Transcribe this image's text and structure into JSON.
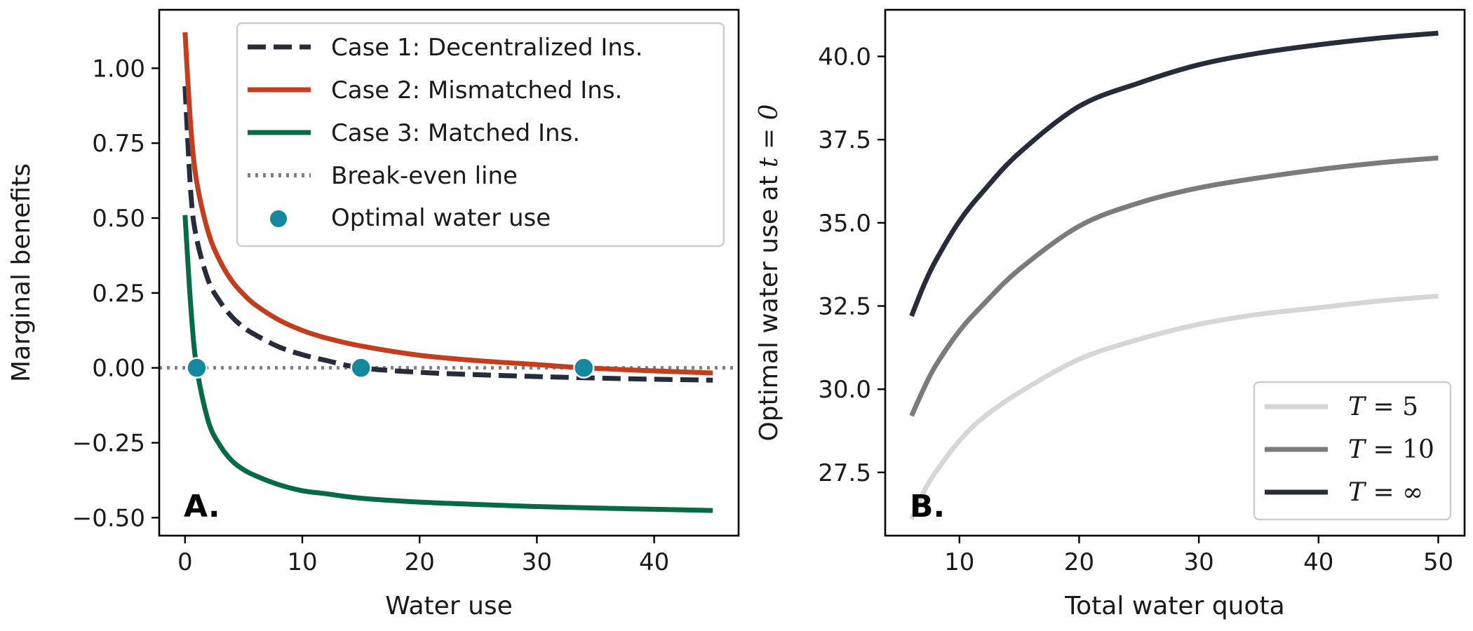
{
  "chart_data": [
    {
      "panel_label": "A.",
      "type": "line",
      "xlabel": "Water use",
      "ylabel": "Marginal benefits",
      "xlim": [
        -2.2,
        47.2
      ],
      "ylim": [
        -0.56,
        1.195
      ],
      "xticks": [
        0,
        10,
        20,
        30,
        40
      ],
      "xtick_labels": [
        "0",
        "10",
        "20",
        "30",
        "40"
      ],
      "yticks": [
        1.0,
        0.75,
        0.5,
        0.25,
        0.0,
        -0.25,
        -0.5
      ],
      "ytick_labels": [
        "1.00",
        "0.75",
        "0.50",
        "0.25",
        "0.00",
        "−0.25",
        "−0.50"
      ],
      "legend_position": "upper right",
      "series": [
        {
          "name": "Case 1: Decentralized Ins.",
          "style": "dashed",
          "color": "#272c3b",
          "x": [
            0,
            0.5,
            1,
            2,
            3,
            4,
            5,
            6,
            8,
            10,
            12,
            15,
            20,
            25,
            30,
            35,
            40,
            45
          ],
          "y": [
            0.94,
            0.58,
            0.43,
            0.29,
            0.22,
            0.17,
            0.135,
            0.11,
            0.07,
            0.044,
            0.025,
            0.0,
            -0.015,
            -0.023,
            -0.029,
            -0.034,
            -0.038,
            -0.041
          ]
        },
        {
          "name": "Case 2: Mismatched Ins.",
          "style": "solid",
          "color": "#c23e1f",
          "x": [
            0,
            0.5,
            1,
            2,
            3,
            4,
            5,
            6,
            8,
            10,
            12,
            15,
            20,
            25,
            30,
            34,
            40,
            45
          ],
          "y": [
            1.12,
            0.8,
            0.62,
            0.45,
            0.355,
            0.29,
            0.245,
            0.21,
            0.16,
            0.125,
            0.1,
            0.073,
            0.042,
            0.024,
            0.011,
            0.0,
            -0.01,
            -0.017
          ]
        },
        {
          "name": "Case 3: Matched Ins.",
          "style": "solid",
          "color": "#066b44",
          "x": [
            0,
            0.5,
            1,
            2,
            3,
            4,
            5,
            6,
            8,
            10,
            12,
            15,
            20,
            25,
            30,
            35,
            40,
            45
          ],
          "y": [
            0.51,
            0.2,
            0.0,
            -0.18,
            -0.26,
            -0.31,
            -0.34,
            -0.36,
            -0.39,
            -0.41,
            -0.42,
            -0.435,
            -0.448,
            -0.456,
            -0.463,
            -0.468,
            -0.472,
            -0.476
          ]
        },
        {
          "name": "Break-even line",
          "style": "dotted",
          "color": "#808080",
          "x": [
            -2.2,
            47.2
          ],
          "y": [
            0,
            0
          ]
        }
      ],
      "markers": {
        "name": "Optimal water use",
        "color": "#13889e",
        "points": [
          {
            "x": 1,
            "y": 0
          },
          {
            "x": 15,
            "y": 0
          },
          {
            "x": 34,
            "y": 0
          }
        ]
      }
    },
    {
      "panel_label": "B.",
      "type": "line",
      "xlabel": "Total water quota",
      "ylabel_prefix": "Optimal water use at ",
      "ylabel_math": "t = 0",
      "xlim": [
        3.8,
        52.2
      ],
      "ylim": [
        25.6,
        41.4
      ],
      "xticks": [
        10,
        20,
        30,
        40,
        50
      ],
      "xtick_labels": [
        "10",
        "20",
        "30",
        "40",
        "50"
      ],
      "yticks": [
        40.0,
        37.5,
        35.0,
        32.5,
        30.0,
        27.5
      ],
      "ytick_labels": [
        "40.0",
        "37.5",
        "35.0",
        "32.5",
        "30.0",
        "27.5"
      ],
      "legend_position": "lower right",
      "series": [
        {
          "name": "T = 5",
          "style": "solid",
          "color": "#d6d6d6",
          "x": [
            6,
            7,
            8,
            10,
            12,
            15,
            20,
            25,
            30,
            35,
            40,
            45,
            50
          ],
          "y": [
            26.1,
            26.9,
            27.5,
            28.45,
            29.15,
            29.9,
            30.9,
            31.5,
            31.95,
            32.25,
            32.45,
            32.65,
            32.8
          ]
        },
        {
          "name": "T = 10",
          "style": "solid",
          "color": "#7b7b7b",
          "x": [
            6,
            7,
            8,
            10,
            12,
            15,
            20,
            25,
            30,
            35,
            40,
            45,
            50
          ],
          "y": [
            29.2,
            30.0,
            30.7,
            31.75,
            32.55,
            33.6,
            34.9,
            35.6,
            36.05,
            36.35,
            36.6,
            36.8,
            36.95
          ]
        },
        {
          "name": "T = ∞",
          "style": "solid",
          "color": "#272c3b",
          "x": [
            6,
            7,
            8,
            10,
            12,
            15,
            20,
            25,
            30,
            35,
            40,
            45,
            50
          ],
          "y": [
            32.2,
            33.1,
            33.85,
            35.05,
            35.95,
            37.1,
            38.5,
            39.2,
            39.75,
            40.1,
            40.35,
            40.55,
            40.7
          ]
        }
      ],
      "legend_entries": [
        {
          "var": "T",
          "value": "5"
        },
        {
          "var": "T",
          "value": "10"
        },
        {
          "var": "T",
          "value": "∞"
        }
      ]
    }
  ]
}
